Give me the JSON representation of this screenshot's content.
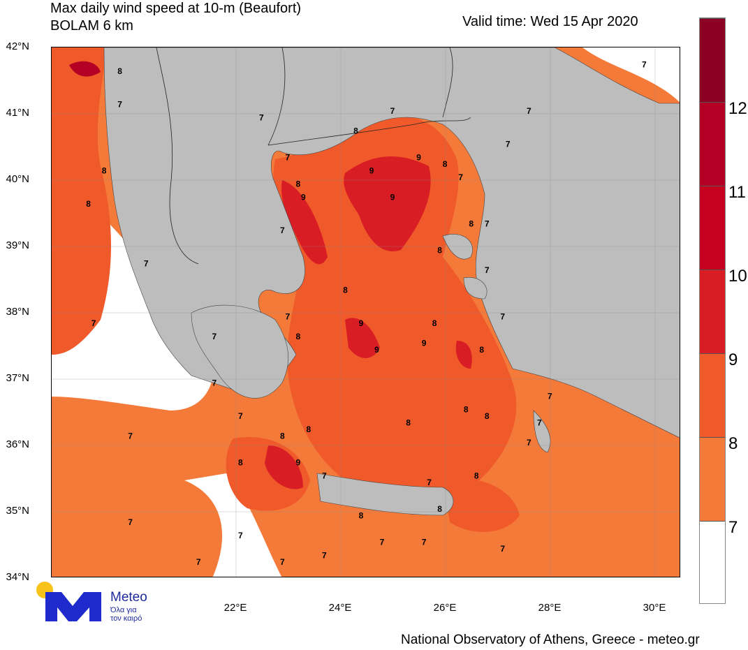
{
  "header": {
    "title_line1": "Max daily wind speed at 10-m (Beaufort)",
    "title_line2": "BOLAM 6 km",
    "valid_time": "Valid time: Wed 15 Apr 2020"
  },
  "axes": {
    "lat_labels": [
      "42°N",
      "41°N",
      "40°N",
      "39°N",
      "38°N",
      "37°N",
      "36°N",
      "35°N",
      "34°N"
    ],
    "lon_labels": [
      "22°E",
      "24°E",
      "26°E",
      "28°E",
      "30°E"
    ]
  },
  "colorbar": {
    "labels": [
      "12",
      "11",
      "10",
      "9",
      "8",
      "7"
    ],
    "colors": [
      "#8c0023",
      "#b30024",
      "#d91d24",
      "#f05a2a",
      "#f47a3a",
      "#ffffff"
    ]
  },
  "map_values": [
    {
      "label": "8",
      "lon": 19.8,
      "lat": 41.6
    },
    {
      "label": "7",
      "lon": 19.8,
      "lat": 41.1
    },
    {
      "label": "8",
      "lon": 19.5,
      "lat": 40.1
    },
    {
      "label": "8",
      "lon": 19.2,
      "lat": 39.6
    },
    {
      "label": "7",
      "lon": 20.3,
      "lat": 38.7
    },
    {
      "label": "7",
      "lon": 19.3,
      "lat": 37.8
    },
    {
      "label": "7",
      "lon": 21.6,
      "lat": 36.9
    },
    {
      "label": "7",
      "lon": 20.0,
      "lat": 36.1
    },
    {
      "label": "7",
      "lon": 20.0,
      "lat": 34.8
    },
    {
      "label": "7",
      "lon": 21.3,
      "lat": 34.2
    },
    {
      "label": "7",
      "lon": 22.1,
      "lat": 34.6
    },
    {
      "label": "7",
      "lon": 22.1,
      "lat": 36.4
    },
    {
      "label": "8",
      "lon": 22.1,
      "lat": 35.7
    },
    {
      "label": "9",
      "lon": 23.2,
      "lat": 35.7
    },
    {
      "label": "8",
      "lon": 22.9,
      "lat": 36.1
    },
    {
      "label": "8",
      "lon": 23.4,
      "lat": 36.2
    },
    {
      "label": "7",
      "lon": 23.7,
      "lat": 35.5
    },
    {
      "label": "7",
      "lon": 22.9,
      "lat": 34.2
    },
    {
      "label": "7",
      "lon": 23.7,
      "lat": 34.3
    },
    {
      "label": "8",
      "lon": 24.4,
      "lat": 34.9
    },
    {
      "label": "7",
      "lon": 24.8,
      "lat": 34.5
    },
    {
      "label": "7",
      "lon": 25.6,
      "lat": 34.5
    },
    {
      "label": "8",
      "lon": 25.9,
      "lat": 35.0
    },
    {
      "label": "7",
      "lon": 25.7,
      "lat": 35.4
    },
    {
      "label": "8",
      "lon": 26.6,
      "lat": 35.5
    },
    {
      "label": "7",
      "lon": 27.1,
      "lat": 34.4
    },
    {
      "label": "8",
      "lon": 25.3,
      "lat": 36.3
    },
    {
      "label": "8",
      "lon": 26.4,
      "lat": 36.5
    },
    {
      "label": "8",
      "lon": 26.8,
      "lat": 36.4
    },
    {
      "label": "7",
      "lon": 27.6,
      "lat": 36.0
    },
    {
      "label": "7",
      "lon": 27.8,
      "lat": 36.3
    },
    {
      "label": "7",
      "lon": 28.0,
      "lat": 36.7
    },
    {
      "label": "8",
      "lon": 26.7,
      "lat": 37.4
    },
    {
      "label": "8",
      "lon": 25.8,
      "lat": 37.8
    },
    {
      "label": "9",
      "lon": 25.6,
      "lat": 37.5
    },
    {
      "label": "9",
      "lon": 24.7,
      "lat": 37.4
    },
    {
      "label": "9",
      "lon": 24.4,
      "lat": 37.8
    },
    {
      "label": "8",
      "lon": 24.1,
      "lat": 38.3
    },
    {
      "label": "8",
      "lon": 23.2,
      "lat": 37.6
    },
    {
      "label": "7",
      "lon": 23.0,
      "lat": 37.9
    },
    {
      "label": "7",
      "lon": 21.6,
      "lat": 37.6
    },
    {
      "label": "7",
      "lon": 27.1,
      "lat": 37.9
    },
    {
      "label": "7",
      "lon": 26.8,
      "lat": 38.6
    },
    {
      "label": "8",
      "lon": 25.9,
      "lat": 38.9
    },
    {
      "label": "7",
      "lon": 22.9,
      "lat": 39.2
    },
    {
      "label": "9",
      "lon": 23.3,
      "lat": 39.7
    },
    {
      "label": "8",
      "lon": 23.2,
      "lat": 39.9
    },
    {
      "label": "7",
      "lon": 23.0,
      "lat": 40.3
    },
    {
      "label": "7",
      "lon": 22.5,
      "lat": 40.9
    },
    {
      "label": "8",
      "lon": 24.3,
      "lat": 40.7
    },
    {
      "label": "7",
      "lon": 25.0,
      "lat": 41.0
    },
    {
      "label": "9",
      "lon": 24.6,
      "lat": 40.1
    },
    {
      "label": "9",
      "lon": 25.0,
      "lat": 39.7
    },
    {
      "label": "9",
      "lon": 25.5,
      "lat": 40.3
    },
    {
      "label": "8",
      "lon": 26.0,
      "lat": 40.2
    },
    {
      "label": "7",
      "lon": 26.3,
      "lat": 40.0
    },
    {
      "label": "8",
      "lon": 26.5,
      "lat": 39.3
    },
    {
      "label": "7",
      "lon": 26.8,
      "lat": 39.3
    },
    {
      "label": "7",
      "lon": 27.6,
      "lat": 41.0
    },
    {
      "label": "7",
      "lon": 27.2,
      "lat": 40.5
    },
    {
      "label": "7",
      "lon": 29.8,
      "lat": 41.7
    }
  ],
  "footer": {
    "logo_name": "Meteo",
    "logo_tagline1": "Όλα για",
    "logo_tagline2": "τον καιρό",
    "credit": "National Observatory of Athens, Greece - meteo.gr"
  }
}
